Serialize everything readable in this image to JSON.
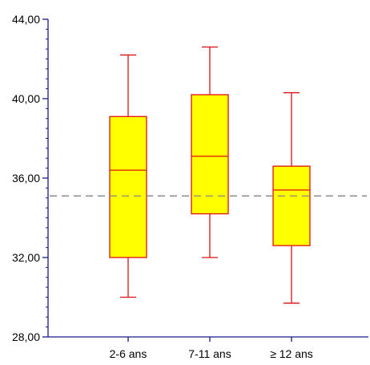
{
  "chart_data": {
    "type": "box",
    "title": "",
    "xlabel": "",
    "ylabel": "",
    "ylim": [
      28,
      44
    ],
    "y_ticks": [
      "28,00",
      "32,00",
      "36,00",
      "40,00",
      "44,00"
    ],
    "y_tick_values": [
      28,
      32,
      36,
      40,
      44
    ],
    "y_minor_step": 0.5,
    "categories": [
      "2-6 ans",
      "7-11 ans",
      "≥ 12 ans"
    ],
    "boxes": [
      {
        "category": "2-6 ans",
        "whisker_low": 30.0,
        "q1": 32.0,
        "median": 36.4,
        "q3": 39.1,
        "whisker_high": 42.2
      },
      {
        "category": "7-11 ans",
        "whisker_low": 32.0,
        "q1": 34.2,
        "median": 37.1,
        "q3": 40.2,
        "whisker_high": 42.6
      },
      {
        "category": "≥ 12 ans",
        "whisker_low": 29.7,
        "q1": 32.6,
        "median": 35.4,
        "q3": 36.6,
        "whisker_high": 40.3
      }
    ],
    "reference_line": {
      "value": 35.1,
      "style": "dashed"
    },
    "grid": false,
    "legend": "none",
    "colors": {
      "box_fill": "#ffff00",
      "box_stroke": "#dd1111",
      "axis": "#1a1a8c",
      "reference_line": "#888888"
    }
  }
}
